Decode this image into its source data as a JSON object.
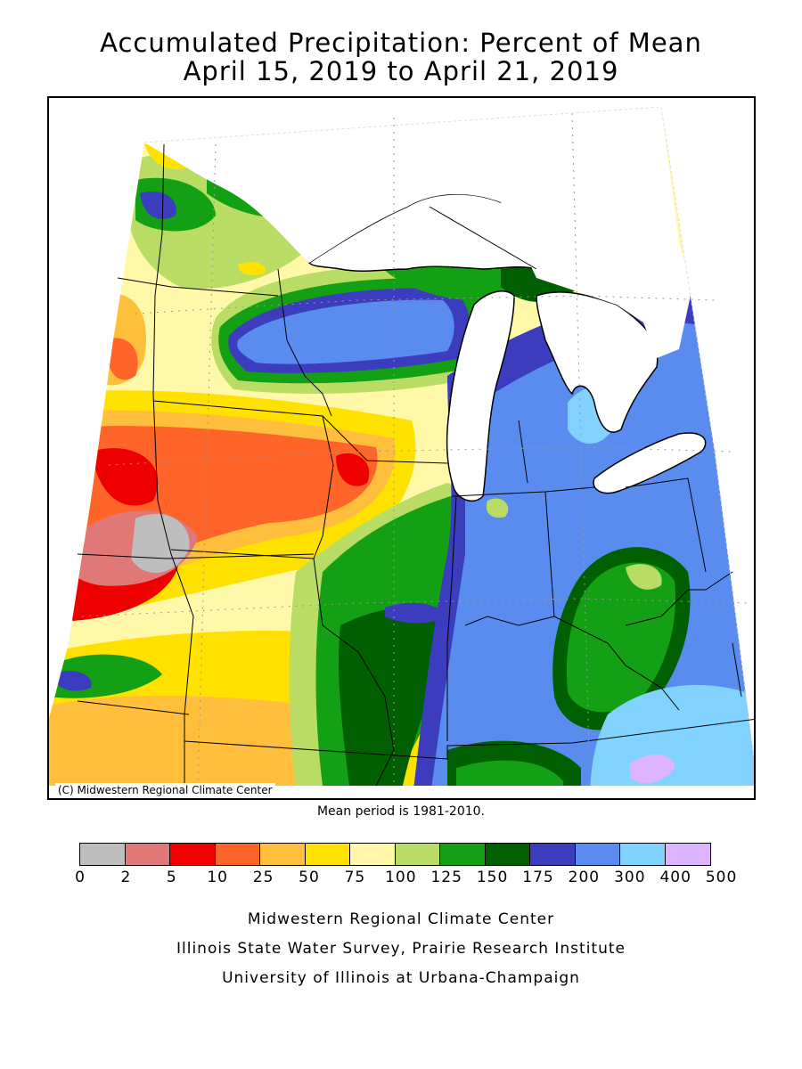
{
  "title": {
    "line1": "Accumulated Precipitation: Percent of Mean",
    "line2": "April 15, 2019 to April 21, 2019"
  },
  "map": {
    "copyright": "(C) Midwestern Regional Climate Center",
    "mean_period": "Mean period is 1981-2010.",
    "region": "Upper Midwest / Great Lakes"
  },
  "legend": {
    "colors": [
      "#bebebe",
      "#e07878",
      "#ee0000",
      "#ff6428",
      "#ffbe3c",
      "#ffe100",
      "#fff8a8",
      "#b9dc64",
      "#14a014",
      "#005f00",
      "#3c3cbe",
      "#5a8cf0",
      "#82d2ff",
      "#dcb4ff"
    ],
    "ticks": [
      "0",
      "2",
      "5",
      "10",
      "25",
      "50",
      "75",
      "100",
      "125",
      "150",
      "175",
      "200",
      "300",
      "400",
      "500"
    ]
  },
  "credits": {
    "line1": "Midwestern Regional Climate Center",
    "line2": "Illinois State Water Survey, Prairie Research Institute",
    "line3": "University of Illinois at Urbana-Champaign"
  }
}
